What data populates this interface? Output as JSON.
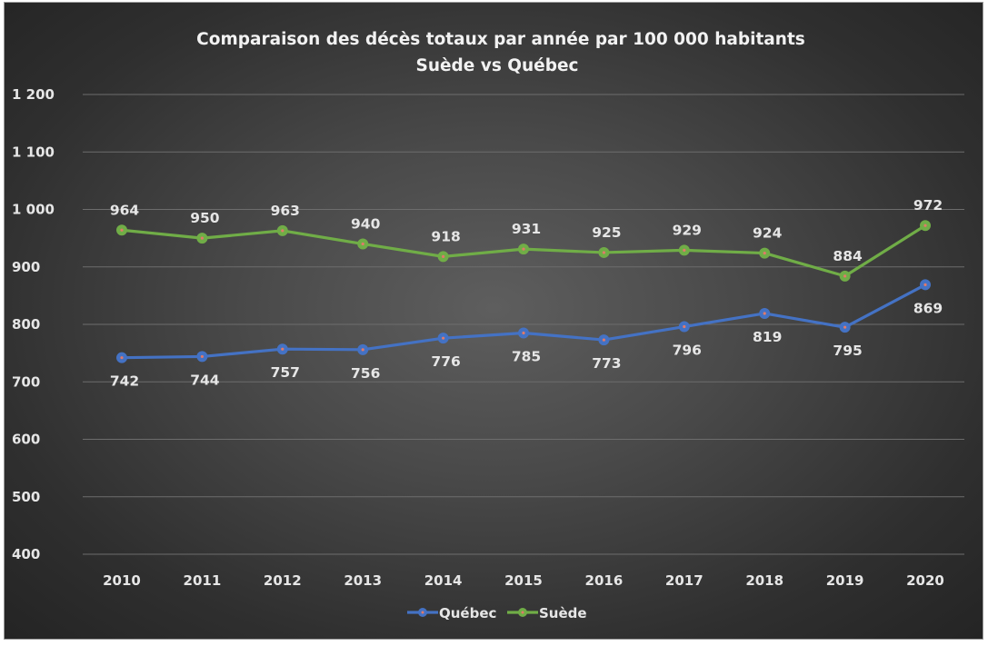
{
  "chart_data": {
    "type": "line",
    "title": "Comparaison des décès totaux par année par 100 000 habitants",
    "subtitle": "Suède vs Québec",
    "x": [
      "2010",
      "2011",
      "2012",
      "2013",
      "2014",
      "2015",
      "2016",
      "2017",
      "2018",
      "2019",
      "2020"
    ],
    "ylim": [
      400,
      1200
    ],
    "yticks": [
      400,
      500,
      600,
      700,
      800,
      900,
      1000,
      1100,
      1200
    ],
    "ytick_labels": [
      "400",
      "500",
      "600",
      "700",
      "800",
      "900",
      "1 000",
      "1 100",
      "1 200"
    ],
    "grid": true,
    "legend_position": "bottom",
    "series": [
      {
        "name": "Québec",
        "color": "#4472c4",
        "marker_dot": "#e07a6a",
        "label_position": "below",
        "values": [
          742,
          744,
          757,
          756,
          776,
          785,
          773,
          796,
          819,
          795,
          869
        ],
        "labels": [
          "742",
          "744",
          "757",
          "756",
          "776",
          "785",
          "773",
          "796",
          "819",
          "795",
          "869"
        ]
      },
      {
        "name": "Suède",
        "color": "#70ad47",
        "marker_dot": "#e07a6a",
        "label_position": "above",
        "values": [
          964,
          950,
          963,
          940,
          918,
          931,
          925,
          929,
          924,
          884,
          972
        ],
        "labels": [
          "964",
          "950",
          "963",
          "940",
          "918",
          "931",
          "925",
          "929",
          "924",
          "884",
          "972"
        ]
      }
    ]
  }
}
